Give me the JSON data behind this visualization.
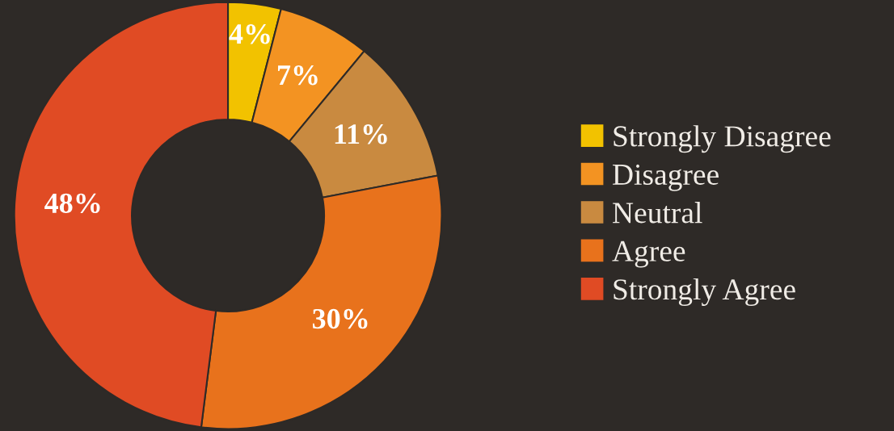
{
  "chart_data": {
    "type": "donut",
    "categories": [
      "Strongly Disagree",
      "Disagree",
      "Neutral",
      "Agree",
      "Strongly Agree"
    ],
    "values": [
      4,
      7,
      11,
      30,
      48
    ],
    "colors": [
      "#f2c200",
      "#f39322",
      "#c98a40",
      "#e8721c",
      "#e04b24"
    ],
    "value_labels": [
      "4%",
      "7%",
      "11%",
      "30%",
      "48%"
    ],
    "legend": "right"
  }
}
